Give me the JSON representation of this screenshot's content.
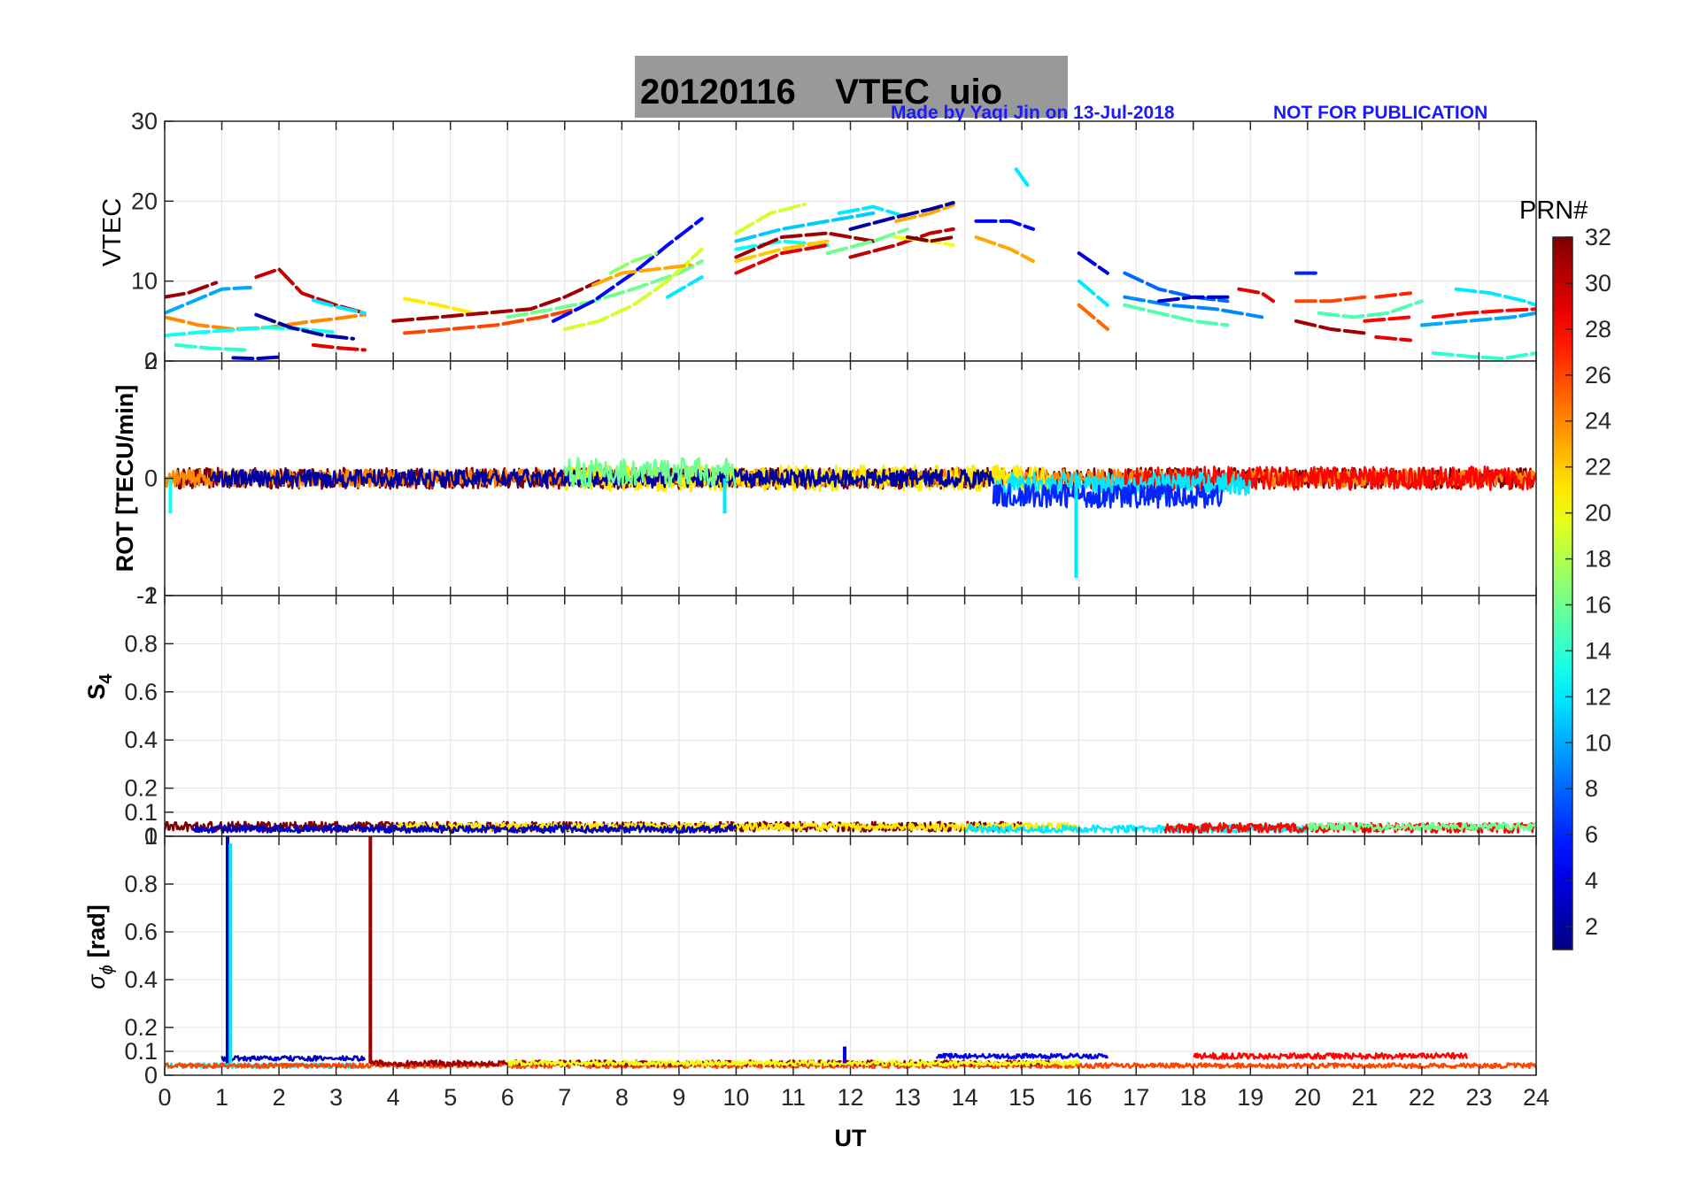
{
  "figure": {
    "title": "20120116    VTEC  uio",
    "credit": "Made by Yaqi Jin on 13-Jul-2018",
    "notice": "NOT FOR PUBLICATION",
    "credit_color": "#1a1aff",
    "title_bg": "#999999"
  },
  "colorbar": {
    "title": "PRN#",
    "range": [
      1,
      32
    ],
    "ticks": [
      "2",
      "4",
      "6",
      "8",
      "10",
      "12",
      "14",
      "16",
      "18",
      "20",
      "22",
      "24",
      "26",
      "28",
      "30",
      "32"
    ],
    "colormap": "jet"
  },
  "chart_data": [
    {
      "type": "line",
      "id": "vtec",
      "ylabel": "VTEC",
      "xlabel": "",
      "xlim": [
        0,
        24
      ],
      "ylim": [
        0,
        30
      ],
      "yticks": [
        "0",
        "10",
        "20",
        "30"
      ],
      "grid": true,
      "series": [
        {
          "prn": 31,
          "x": [
            0.0,
            0.4,
            0.9
          ],
          "values": [
            8.0,
            8.5,
            9.8
          ]
        },
        {
          "prn": 10,
          "x": [
            0.0,
            0.5,
            1.0,
            1.5
          ],
          "values": [
            6.0,
            7.5,
            9.0,
            9.2
          ]
        },
        {
          "prn": 24,
          "x": [
            0.0,
            0.6,
            1.2,
            1.8,
            2.4,
            3.0,
            3.5
          ],
          "values": [
            5.5,
            4.5,
            4.0,
            4.2,
            4.8,
            5.3,
            5.8
          ]
        },
        {
          "prn": 13,
          "x": [
            0.0,
            0.6,
            1.2,
            1.8,
            2.4,
            3.0
          ],
          "values": [
            3.2,
            3.6,
            3.9,
            4.2,
            4.0,
            3.6
          ]
        },
        {
          "prn": 14,
          "x": [
            0.2,
            0.8,
            1.4
          ],
          "values": [
            2.0,
            1.6,
            1.4
          ]
        },
        {
          "prn": 3,
          "x": [
            1.2,
            1.6,
            2.0
          ],
          "values": [
            0.4,
            0.3,
            0.5
          ]
        },
        {
          "prn": 30,
          "x": [
            1.6,
            2.0,
            2.4,
            3.0,
            3.5
          ],
          "values": [
            10.5,
            11.5,
            8.5,
            7.0,
            6.0
          ]
        },
        {
          "prn": 2,
          "x": [
            1.6,
            2.2,
            2.8,
            3.3
          ],
          "values": [
            5.8,
            4.2,
            3.2,
            2.8
          ]
        },
        {
          "prn": 12,
          "x": [
            2.6,
            3.0,
            3.5
          ],
          "values": [
            7.6,
            6.8,
            6.0
          ]
        },
        {
          "prn": 29,
          "x": [
            2.6,
            3.1,
            3.5
          ],
          "values": [
            2.0,
            1.6,
            1.4
          ]
        },
        {
          "prn": 21,
          "x": [
            4.2,
            4.8,
            5.4
          ],
          "values": [
            7.8,
            7.0,
            6.0
          ]
        },
        {
          "prn": 31,
          "x": [
            4.0,
            4.8,
            5.6,
            6.4,
            7.0,
            7.6
          ],
          "values": [
            5.0,
            5.5,
            6.0,
            6.5,
            8.0,
            10.0
          ]
        },
        {
          "prn": 26,
          "x": [
            4.2,
            5.0,
            5.8,
            6.6,
            7.2
          ],
          "values": [
            3.5,
            4.0,
            4.5,
            5.5,
            6.5
          ]
        },
        {
          "prn": 16,
          "x": [
            6.0,
            6.8,
            7.5,
            8.2,
            9.0,
            9.4
          ],
          "values": [
            5.5,
            6.5,
            7.5,
            9.0,
            11.0,
            12.5
          ]
        },
        {
          "prn": 5,
          "x": [
            6.8,
            7.5,
            8.2,
            8.8,
            9.4
          ],
          "values": [
            5.0,
            7.5,
            11.0,
            14.5,
            17.8
          ]
        },
        {
          "prn": 19,
          "x": [
            7.0,
            7.6,
            8.2,
            8.8,
            9.4
          ],
          "values": [
            4.0,
            5.0,
            7.0,
            10.0,
            14.0
          ]
        },
        {
          "prn": 23,
          "x": [
            7.5,
            8.0,
            8.6,
            9.2
          ],
          "values": [
            9.5,
            11.0,
            11.5,
            12.0
          ]
        },
        {
          "prn": 17,
          "x": [
            7.8,
            8.2,
            8.6
          ],
          "values": [
            11.0,
            12.5,
            13.5
          ]
        },
        {
          "prn": 12,
          "x": [
            8.8,
            9.4
          ],
          "values": [
            8.0,
            10.5
          ]
        },
        {
          "prn": 19,
          "x": [
            10.0,
            10.6,
            11.2
          ],
          "values": [
            16.0,
            18.5,
            19.6
          ]
        },
        {
          "prn": 11,
          "x": [
            10.0,
            10.8,
            11.6,
            12.4
          ],
          "values": [
            15.0,
            16.5,
            17.5,
            18.5
          ]
        },
        {
          "prn": 13,
          "x": [
            10.0,
            10.8,
            11.6
          ],
          "values": [
            14.0,
            15.0,
            14.5
          ]
        },
        {
          "prn": 29,
          "x": [
            10.0,
            10.8,
            11.6
          ],
          "values": [
            11.0,
            13.5,
            14.5
          ]
        },
        {
          "prn": 31,
          "x": [
            10.0,
            10.8,
            11.6,
            12.4
          ],
          "values": [
            13.0,
            15.5,
            16.0,
            15.0
          ]
        },
        {
          "prn": 22,
          "x": [
            10.0,
            10.8,
            11.6
          ],
          "values": [
            12.5,
            14.0,
            15.0
          ]
        },
        {
          "prn": 16,
          "x": [
            11.6,
            12.4,
            13.0
          ],
          "values": [
            13.5,
            15.0,
            16.5
          ]
        },
        {
          "prn": 12,
          "x": [
            11.8,
            12.4,
            13.0
          ],
          "values": [
            18.5,
            19.3,
            18.0
          ]
        },
        {
          "prn": 23,
          "x": [
            12.8,
            13.4,
            13.8
          ],
          "values": [
            17.5,
            18.5,
            19.5
          ]
        },
        {
          "prn": 2,
          "x": [
            12.0,
            12.8,
            13.4,
            13.8
          ],
          "values": [
            16.5,
            18.0,
            19.0,
            19.8
          ]
        },
        {
          "prn": 30,
          "x": [
            12.0,
            12.8,
            13.4,
            13.8
          ],
          "values": [
            13.0,
            14.5,
            16.0,
            16.5
          ]
        },
        {
          "prn": 20,
          "x": [
            12.8,
            13.4,
            13.8
          ],
          "values": [
            15.5,
            15.0,
            14.5
          ]
        },
        {
          "prn": 32,
          "x": [
            13.0,
            13.4,
            13.8
          ],
          "values": [
            15.5,
            15.0,
            15.5
          ]
        },
        {
          "prn": 5,
          "x": [
            14.2,
            14.8,
            15.2
          ],
          "values": [
            17.5,
            17.5,
            16.5
          ]
        },
        {
          "prn": 23,
          "x": [
            14.2,
            14.8,
            15.2
          ],
          "values": [
            15.5,
            14.0,
            12.5
          ]
        },
        {
          "prn": 12,
          "x": [
            14.9,
            15.1
          ],
          "values": [
            24.0,
            22.0
          ]
        },
        {
          "prn": 4,
          "x": [
            16.0,
            16.5
          ],
          "values": [
            13.5,
            11.0
          ]
        },
        {
          "prn": 12,
          "x": [
            16.0,
            16.5
          ],
          "values": [
            10.0,
            7.0
          ]
        },
        {
          "prn": 25,
          "x": [
            16.0,
            16.5
          ],
          "values": [
            7.0,
            4.0
          ]
        },
        {
          "prn": 8,
          "x": [
            16.8,
            17.4,
            18.0,
            18.6
          ],
          "values": [
            11.0,
            9.0,
            8.0,
            7.5
          ]
        },
        {
          "prn": 15,
          "x": [
            16.8,
            17.4,
            18.0,
            18.6
          ],
          "values": [
            7.0,
            6.0,
            5.0,
            4.5
          ]
        },
        {
          "prn": 9,
          "x": [
            16.8,
            17.6,
            18.4,
            19.2
          ],
          "values": [
            8.0,
            7.0,
            6.5,
            5.5
          ]
        },
        {
          "prn": 3,
          "x": [
            17.4,
            18.0,
            18.6
          ],
          "values": [
            7.5,
            8.0,
            8.0
          ]
        },
        {
          "prn": 29,
          "x": [
            18.8,
            19.2,
            19.4
          ],
          "values": [
            9.0,
            8.5,
            7.5
          ]
        },
        {
          "prn": 6,
          "x": [
            19.8,
            20.2
          ],
          "values": [
            11.0,
            11.0
          ]
        },
        {
          "prn": 26,
          "x": [
            19.8,
            20.4,
            21.0
          ],
          "values": [
            7.5,
            7.5,
            8.0
          ]
        },
        {
          "prn": 31,
          "x": [
            19.8,
            20.4,
            21.0
          ],
          "values": [
            5.0,
            4.0,
            3.5
          ]
        },
        {
          "prn": 15,
          "x": [
            20.2,
            20.8,
            21.4,
            22.0
          ],
          "values": [
            6.0,
            5.5,
            6.0,
            7.5
          ]
        },
        {
          "prn": 27,
          "x": [
            21.2,
            21.8
          ],
          "values": [
            8.0,
            8.5
          ]
        },
        {
          "prn": 28,
          "x": [
            21.0,
            21.8
          ],
          "values": [
            5.0,
            5.5
          ]
        },
        {
          "prn": 29,
          "x": [
            21.2,
            21.8
          ],
          "values": [
            3.0,
            2.6
          ]
        },
        {
          "prn": 28,
          "x": [
            22.2,
            22.8,
            23.4,
            24.0
          ],
          "values": [
            5.5,
            6.0,
            6.3,
            6.5
          ]
        },
        {
          "prn": 12,
          "x": [
            22.6,
            23.2,
            23.8,
            24.0
          ],
          "values": [
            9.0,
            8.5,
            7.5,
            7.0
          ]
        },
        {
          "prn": 14,
          "x": [
            22.2,
            22.8,
            23.4,
            24.0
          ],
          "values": [
            1.0,
            0.6,
            0.3,
            1.0
          ]
        },
        {
          "prn": 10,
          "x": [
            22.0,
            22.8,
            23.6,
            24.0
          ],
          "values": [
            4.5,
            5.0,
            5.5,
            6.0
          ]
        }
      ]
    },
    {
      "type": "line",
      "id": "rot",
      "ylabel": "ROT [TECU/min]",
      "xlabel": "",
      "xlim": [
        0,
        24
      ],
      "ylim": [
        -2,
        2
      ],
      "yticks": [
        "-2",
        "0",
        "2"
      ],
      "grid": true,
      "description_values": {
        "typical_range": [
          -0.4,
          0.4
        ],
        "extreme_min": -1.7
      },
      "series": [
        {
          "prn": 32,
          "x_range": [
            0.2,
            24.0
          ],
          "amplitude": 0.18,
          "offset": 0.0
        },
        {
          "prn": 24,
          "x_range": [
            0.0,
            24.0
          ],
          "amplitude": 0.15,
          "offset": 0.0
        },
        {
          "prn": 28,
          "x_range": [
            16.8,
            24.0
          ],
          "amplitude": 0.2,
          "offset": 0.0
        },
        {
          "prn": 21,
          "x_range": [
            7.0,
            15.5
          ],
          "amplitude": 0.22,
          "offset": 0.0
        },
        {
          "prn": 12,
          "x_range": [
            14.5,
            19.0
          ],
          "amplitude": 0.2,
          "offset": -0.1
        },
        {
          "prn": 6,
          "x_range": [
            14.5,
            18.5
          ],
          "amplitude": 0.2,
          "offset": -0.3
        },
        {
          "prn": 2,
          "x_range": [
            0.8,
            14.5
          ],
          "amplitude": 0.15,
          "offset": 0.0
        },
        {
          "prn": 16,
          "x_range": [
            7.0,
            10.0
          ],
          "amplitude": 0.25,
          "offset": 0.1
        }
      ],
      "spikes": [
        {
          "prn": 12,
          "x": 15.95,
          "value": -1.7
        },
        {
          "prn": 12,
          "x": 9.8,
          "value": -0.6
        },
        {
          "prn": 13,
          "x": 0.1,
          "value": -0.6
        }
      ]
    },
    {
      "type": "line",
      "id": "s4",
      "ylabel": "S4",
      "xlabel": "",
      "xlim": [
        0,
        24
      ],
      "ylim": [
        0,
        1
      ],
      "yticks": [
        "0",
        "0.1",
        "0.2",
        "0.4",
        "0.6",
        "0.8",
        "1"
      ],
      "grid": true,
      "description_values": {
        "baseline": 0.04,
        "typical_max": 0.1
      },
      "series": [
        {
          "prn": 32,
          "x_range": [
            0.0,
            15.0
          ],
          "amplitude": 0.02,
          "offset": 0.04
        },
        {
          "prn": 21,
          "x_range": [
            4.0,
            16.0
          ],
          "amplitude": 0.015,
          "offset": 0.04
        },
        {
          "prn": 12,
          "x_range": [
            14.0,
            20.0
          ],
          "amplitude": 0.015,
          "offset": 0.03
        },
        {
          "prn": 28,
          "x_range": [
            17.5,
            24.0
          ],
          "amplitude": 0.02,
          "offset": 0.035
        },
        {
          "prn": 3,
          "x_range": [
            0.5,
            10.0
          ],
          "amplitude": 0.015,
          "offset": 0.03
        },
        {
          "prn": 16,
          "x_range": [
            20.0,
            24.0
          ],
          "amplitude": 0.015,
          "offset": 0.04
        }
      ]
    },
    {
      "type": "line",
      "id": "sigma_phi",
      "ylabel": "σ",
      "ylabel_sub": "ϕ",
      "ylabel_unit": "[rad]",
      "xlabel": "UT",
      "xlim": [
        0,
        24
      ],
      "ylim": [
        0,
        1
      ],
      "xticks": [
        "0",
        "1",
        "2",
        "3",
        "4",
        "5",
        "6",
        "7",
        "8",
        "9",
        "10",
        "11",
        "12",
        "13",
        "14",
        "15",
        "16",
        "17",
        "18",
        "19",
        "20",
        "21",
        "22",
        "23",
        "24"
      ],
      "yticks": [
        "0",
        "0.1",
        "0.2",
        "0.4",
        "0.6",
        "0.8",
        "1"
      ],
      "grid": true,
      "description_values": {
        "baseline": 0.05
      },
      "series": [
        {
          "prn": 3,
          "x_range": [
            1.0,
            3.5
          ],
          "amplitude": 0.01,
          "offset": 0.07
        },
        {
          "prn": 12,
          "x_range": [
            0.0,
            3.5
          ],
          "amplitude": 0.01,
          "offset": 0.04
        },
        {
          "prn": 26,
          "x_range": [
            0.0,
            24.0
          ],
          "amplitude": 0.01,
          "offset": 0.04
        },
        {
          "prn": 31,
          "x_range": [
            3.6,
            15.5
          ],
          "amplitude": 0.012,
          "offset": 0.05
        },
        {
          "prn": 4,
          "x_range": [
            13.5,
            16.5
          ],
          "amplitude": 0.01,
          "offset": 0.08
        },
        {
          "prn": 28,
          "x_range": [
            18.0,
            22.8
          ],
          "amplitude": 0.012,
          "offset": 0.08
        },
        {
          "prn": 20,
          "x_range": [
            6.0,
            16.0
          ],
          "amplitude": 0.01,
          "offset": 0.05
        }
      ],
      "spikes": [
        {
          "prn": 3,
          "x": 1.1,
          "value": 1.0
        },
        {
          "prn": 12,
          "x": 1.15,
          "value": 0.97
        },
        {
          "prn": 31,
          "x": 3.6,
          "value": 1.0
        },
        {
          "prn": 4,
          "x": 11.9,
          "value": 0.12
        }
      ]
    }
  ]
}
